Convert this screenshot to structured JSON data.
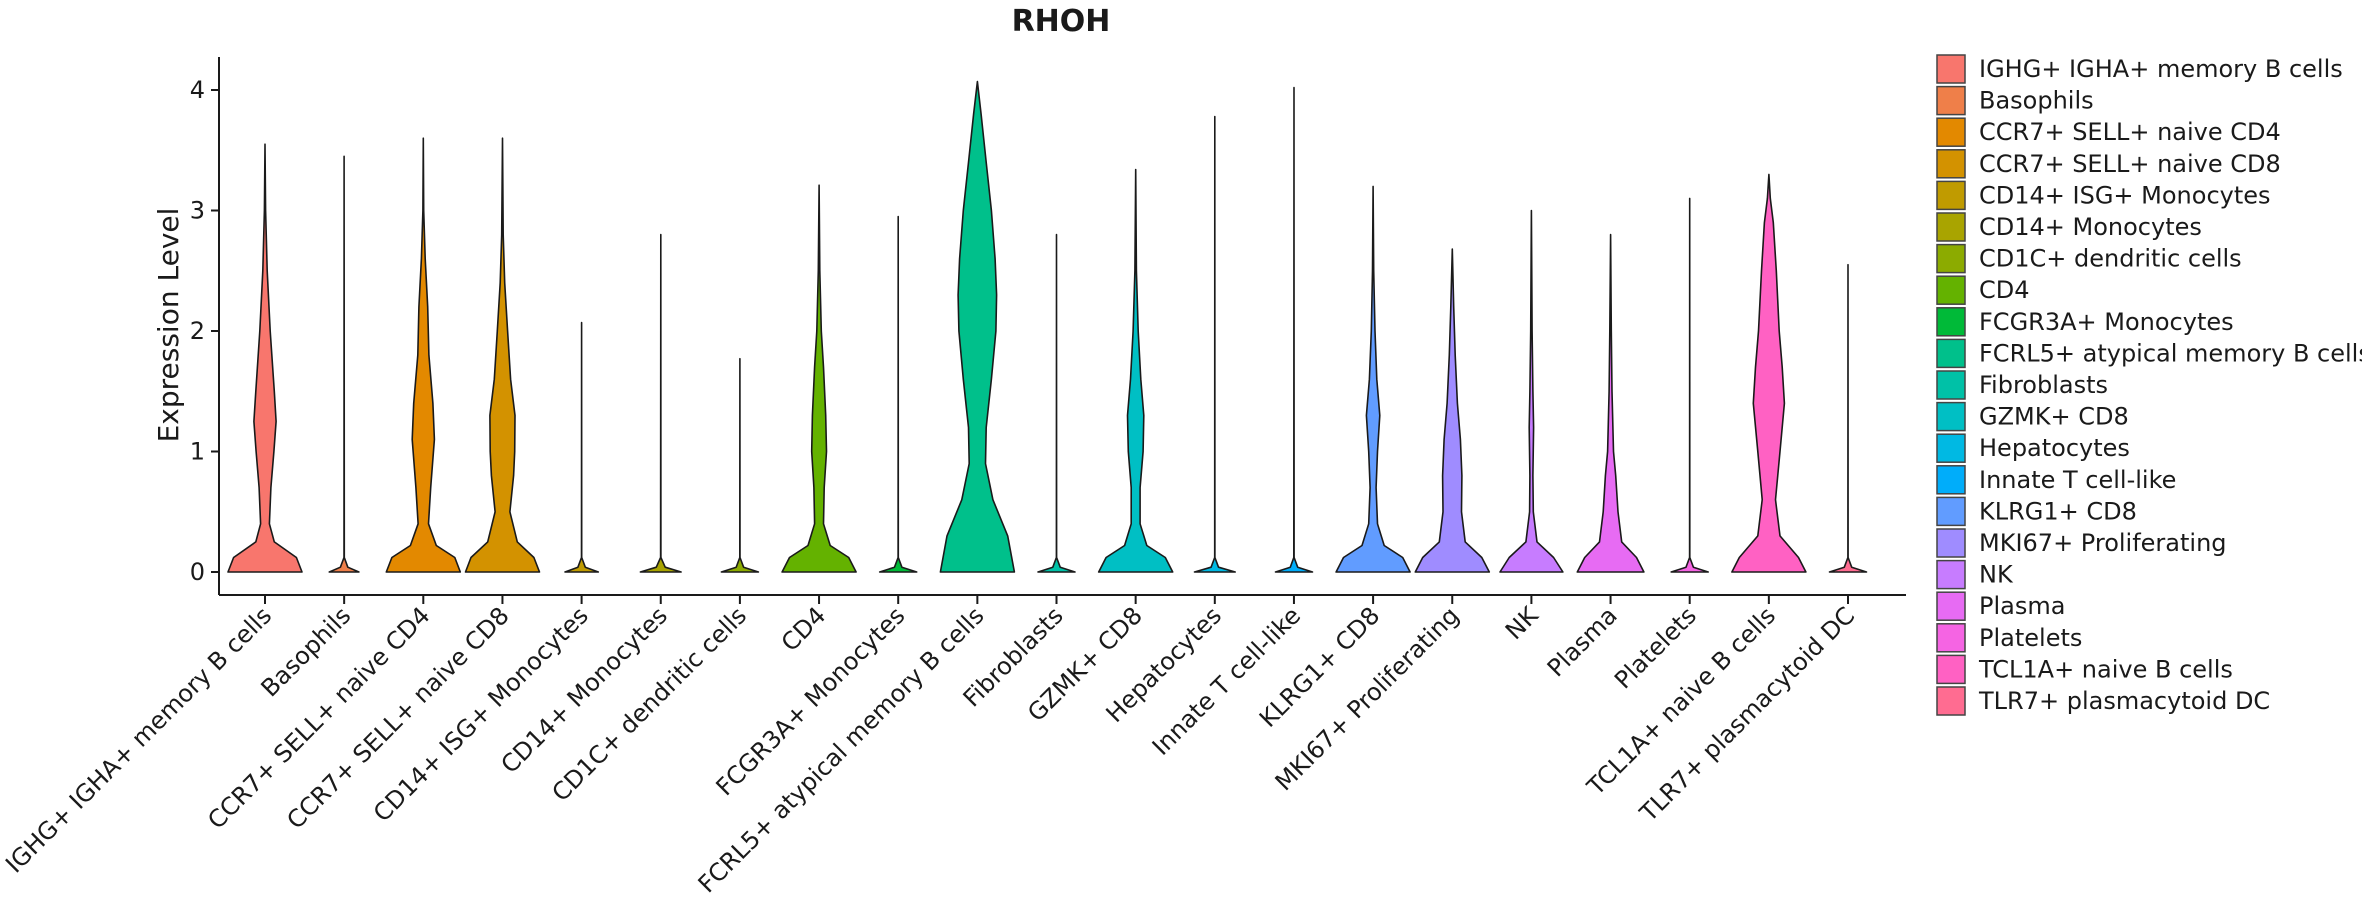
{
  "chart_data": {
    "type": "violin",
    "title": "RHOH",
    "xlabel": "",
    "ylabel": "Expression Level",
    "ylim": [
      -0.2,
      4.27
    ],
    "yticks": [
      0,
      1,
      2,
      3,
      4
    ],
    "legend_position": "right",
    "categories": [
      "IGHG+ IGHA+ memory B cells",
      "Basophils",
      "CCR7+ SELL+ naive CD4",
      "CCR7+ SELL+ naive CD8",
      "CD14+ ISG+ Monocytes",
      "CD14+ Monocytes",
      "CD1C+ dendritic cells",
      "CD4",
      "FCGR3A+ Monocytes",
      "FCRL5+ atypical memory B cells",
      "Fibroblasts",
      "GZMK+ CD8",
      "Hepatocytes",
      "Innate T cell-like",
      "KLRG1+ CD8",
      "MKI67+ Proliferating",
      "NK",
      "Plasma",
      "Platelets",
      "TCL1A+ naive B cells",
      "TLR7+ plasmacytoid DC"
    ],
    "legend_labels": [
      " IGHG+ IGHA+ memory B cells",
      "Basophils",
      "CCR7+ SELL+ naive CD4",
      "CCR7+ SELL+ naive CD8",
      "CD14+ ISG+ Monocytes",
      "CD14+ Monocytes",
      "CD1C+ dendritic cells",
      "CD4",
      "FCGR3A+ Monocytes",
      "FCRL5+ atypical memory B cells",
      "Fibroblasts",
      "GZMK+ CD8",
      "Hepatocytes",
      "Innate T cell-like",
      "KLRG1+ CD8",
      "MKI67+ Proliferating",
      "NK",
      "Plasma",
      "Platelets",
      "TCL1A+ naive B cells",
      "TLR7+ plasmacytoid DC"
    ],
    "colors": [
      "#F8766D",
      "#EF7F49",
      "#E38900",
      "#D39200",
      "#C09B00",
      "#A9A400",
      "#8CAB00",
      "#64B200",
      "#00BA38",
      "#00C08B",
      "#00C1A7",
      "#00BFC4",
      "#00B9E3",
      "#00ADFA",
      "#619CFF",
      "#9F8CFF",
      "#C77CFF",
      "#E76BF3",
      "#F564E3",
      "#FF61C3",
      "#FF6C91"
    ],
    "max_values": [
      3.55,
      3.45,
      3.6,
      3.6,
      2.07,
      2.8,
      1.77,
      3.21,
      2.95,
      4.07,
      2.8,
      3.34,
      3.78,
      4.02,
      3.2,
      2.68,
      3.0,
      2.8,
      3.1,
      3.3,
      2.55
    ],
    "densities": [
      [
        [
          0,
          1.0
        ],
        [
          0.12,
          0.85
        ],
        [
          0.25,
          0.25
        ],
        [
          0.4,
          0.12
        ],
        [
          0.7,
          0.16
        ],
        [
          1.0,
          0.24
        ],
        [
          1.25,
          0.3
        ],
        [
          1.5,
          0.25
        ],
        [
          2.0,
          0.14
        ],
        [
          2.5,
          0.06
        ],
        [
          3.0,
          0.015
        ],
        [
          3.55,
          0
        ]
      ],
      [
        [
          0,
          0.4
        ],
        [
          0.04,
          0.1
        ],
        [
          0.12,
          0.003
        ],
        [
          3.45,
          0
        ]
      ],
      [
        [
          0,
          1.0
        ],
        [
          0.12,
          0.85
        ],
        [
          0.22,
          0.35
        ],
        [
          0.4,
          0.14
        ],
        [
          0.7,
          0.2
        ],
        [
          1.1,
          0.3
        ],
        [
          1.4,
          0.26
        ],
        [
          1.8,
          0.15
        ],
        [
          2.2,
          0.12
        ],
        [
          2.6,
          0.05
        ],
        [
          3.0,
          0.01
        ],
        [
          3.6,
          0
        ]
      ],
      [
        [
          0,
          1.0
        ],
        [
          0.12,
          0.85
        ],
        [
          0.25,
          0.4
        ],
        [
          0.5,
          0.2
        ],
        [
          0.8,
          0.3
        ],
        [
          1.0,
          0.33
        ],
        [
          1.3,
          0.34
        ],
        [
          1.6,
          0.22
        ],
        [
          2.0,
          0.14
        ],
        [
          2.4,
          0.06
        ],
        [
          2.8,
          0.02
        ],
        [
          3.6,
          0
        ]
      ],
      [
        [
          0,
          0.45
        ],
        [
          0.04,
          0.1
        ],
        [
          0.12,
          0.003
        ],
        [
          2.07,
          0
        ]
      ],
      [
        [
          0,
          0.55
        ],
        [
          0.04,
          0.12
        ],
        [
          0.12,
          0.003
        ],
        [
          2.8,
          0
        ]
      ],
      [
        [
          0,
          0.5
        ],
        [
          0.04,
          0.1
        ],
        [
          0.12,
          0.003
        ],
        [
          1.77,
          0
        ]
      ],
      [
        [
          0,
          1.0
        ],
        [
          0.12,
          0.8
        ],
        [
          0.22,
          0.3
        ],
        [
          0.4,
          0.12
        ],
        [
          0.7,
          0.14
        ],
        [
          1.0,
          0.2
        ],
        [
          1.3,
          0.18
        ],
        [
          1.7,
          0.12
        ],
        [
          2.0,
          0.06
        ],
        [
          2.5,
          0.02
        ],
        [
          3.21,
          0
        ]
      ],
      [
        [
          0,
          0.5
        ],
        [
          0.04,
          0.1
        ],
        [
          0.12,
          0.003
        ],
        [
          2.95,
          0
        ]
      ],
      [
        [
          0,
          1.0
        ],
        [
          0.3,
          0.82
        ],
        [
          0.6,
          0.42
        ],
        [
          0.9,
          0.22
        ],
        [
          1.2,
          0.24
        ],
        [
          1.6,
          0.38
        ],
        [
          2.0,
          0.5
        ],
        [
          2.3,
          0.52
        ],
        [
          2.6,
          0.48
        ],
        [
          3.0,
          0.38
        ],
        [
          3.4,
          0.24
        ],
        [
          3.8,
          0.1
        ],
        [
          4.07,
          0
        ]
      ],
      [
        [
          0,
          0.5
        ],
        [
          0.04,
          0.1
        ],
        [
          0.12,
          0.003
        ],
        [
          2.8,
          0
        ]
      ],
      [
        [
          0,
          1.0
        ],
        [
          0.12,
          0.8
        ],
        [
          0.22,
          0.3
        ],
        [
          0.4,
          0.12
        ],
        [
          0.7,
          0.12
        ],
        [
          1.0,
          0.2
        ],
        [
          1.3,
          0.22
        ],
        [
          1.6,
          0.14
        ],
        [
          2.0,
          0.07
        ],
        [
          2.5,
          0.02
        ],
        [
          3.34,
          0
        ]
      ],
      [
        [
          0,
          0.55
        ],
        [
          0.04,
          0.1
        ],
        [
          0.12,
          0.003
        ],
        [
          3.78,
          0
        ]
      ],
      [
        [
          0,
          0.5
        ],
        [
          0.04,
          0.1
        ],
        [
          0.12,
          0.003
        ],
        [
          4.02,
          0
        ]
      ],
      [
        [
          0,
          1.0
        ],
        [
          0.12,
          0.8
        ],
        [
          0.22,
          0.3
        ],
        [
          0.4,
          0.12
        ],
        [
          0.7,
          0.08
        ],
        [
          1.0,
          0.12
        ],
        [
          1.3,
          0.18
        ],
        [
          1.6,
          0.1
        ],
        [
          2.0,
          0.05
        ],
        [
          2.5,
          0.015
        ],
        [
          3.2,
          0
        ]
      ],
      [
        [
          0,
          1.0
        ],
        [
          0.12,
          0.8
        ],
        [
          0.25,
          0.35
        ],
        [
          0.5,
          0.25
        ],
        [
          0.8,
          0.26
        ],
        [
          1.1,
          0.22
        ],
        [
          1.4,
          0.14
        ],
        [
          1.8,
          0.08
        ],
        [
          2.2,
          0.04
        ],
        [
          2.68,
          0
        ]
      ],
      [
        [
          0,
          0.85
        ],
        [
          0.12,
          0.6
        ],
        [
          0.25,
          0.15
        ],
        [
          0.5,
          0.05
        ],
        [
          0.8,
          0.04
        ],
        [
          1.2,
          0.06
        ],
        [
          1.5,
          0.04
        ],
        [
          2.0,
          0.02
        ],
        [
          3.0,
          0
        ]
      ],
      [
        [
          0,
          0.9
        ],
        [
          0.12,
          0.7
        ],
        [
          0.25,
          0.3
        ],
        [
          0.5,
          0.2
        ],
        [
          0.8,
          0.14
        ],
        [
          1.0,
          0.08
        ],
        [
          1.5,
          0.04
        ],
        [
          2.0,
          0.02
        ],
        [
          2.8,
          0
        ]
      ],
      [
        [
          0,
          0.5
        ],
        [
          0.04,
          0.1
        ],
        [
          0.12,
          0.003
        ],
        [
          3.1,
          0
        ]
      ],
      [
        [
          0,
          1.0
        ],
        [
          0.12,
          0.8
        ],
        [
          0.3,
          0.3
        ],
        [
          0.6,
          0.18
        ],
        [
          1.0,
          0.3
        ],
        [
          1.4,
          0.42
        ],
        [
          1.7,
          0.36
        ],
        [
          2.0,
          0.28
        ],
        [
          2.5,
          0.2
        ],
        [
          2.9,
          0.12
        ],
        [
          3.1,
          0.04
        ],
        [
          3.3,
          0
        ]
      ],
      [
        [
          0,
          0.5
        ],
        [
          0.04,
          0.1
        ],
        [
          0.12,
          0.003
        ],
        [
          2.55,
          0
        ]
      ]
    ]
  }
}
